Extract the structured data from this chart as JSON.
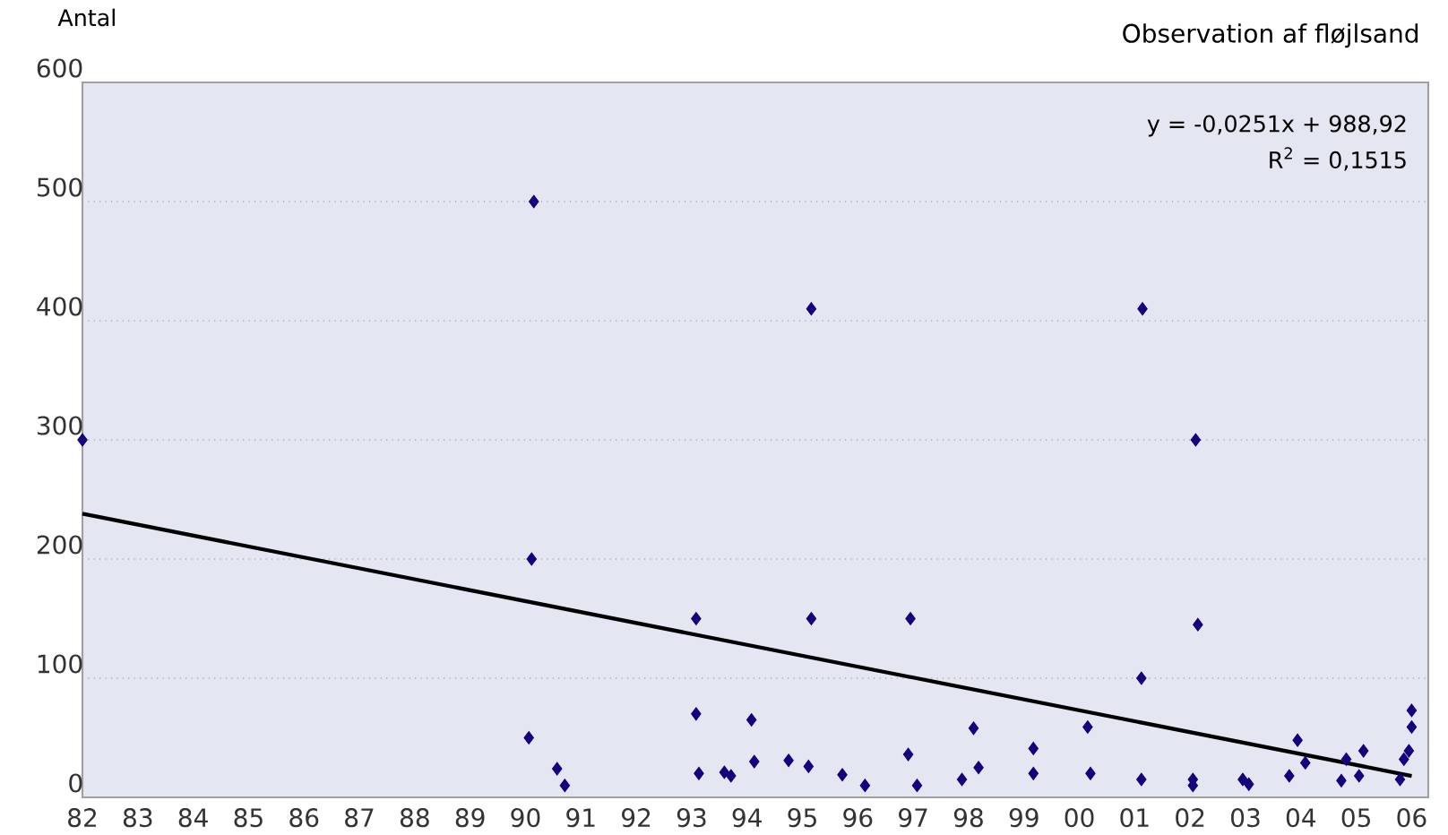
{
  "chart_data": {
    "type": "scatter",
    "title": "Observation af fløjlsand",
    "ylabel": "Antal",
    "annotations": [
      "y = -0,0251x + 988,92",
      "R$^{2}$ = 0,1515"
    ],
    "xlim": [
      1982,
      2006.3
    ],
    "xticks": [
      {
        "value": 1982,
        "label": "82"
      },
      {
        "value": 1983,
        "label": "83"
      },
      {
        "value": 1984,
        "label": "84"
      },
      {
        "value": 1985,
        "label": "85"
      },
      {
        "value": 1986,
        "label": "86"
      },
      {
        "value": 1987,
        "label": "87"
      },
      {
        "value": 1988,
        "label": "88"
      },
      {
        "value": 1989,
        "label": "89"
      },
      {
        "value": 1990,
        "label": "90"
      },
      {
        "value": 1991,
        "label": "91"
      },
      {
        "value": 1992,
        "label": "92"
      },
      {
        "value": 1993,
        "label": "93"
      },
      {
        "value": 1994,
        "label": "94"
      },
      {
        "value": 1995,
        "label": "95"
      },
      {
        "value": 1996,
        "label": "96"
      },
      {
        "value": 1997,
        "label": "97"
      },
      {
        "value": 1998,
        "label": "98"
      },
      {
        "value": 1999,
        "label": "99"
      },
      {
        "value": 2000,
        "label": "00"
      },
      {
        "value": 2001,
        "label": "01"
      },
      {
        "value": 2002,
        "label": "02"
      },
      {
        "value": 2003,
        "label": "03"
      },
      {
        "value": 2004,
        "label": "04"
      },
      {
        "value": 2005,
        "label": "05"
      },
      {
        "value": 2006,
        "label": "06"
      }
    ],
    "ylim": [
      0,
      600
    ],
    "yticks": [
      0,
      100,
      200,
      300,
      400,
      500,
      600
    ],
    "grid": "y",
    "series": [
      {
        "marker": "diamond",
        "color": "#14007c",
        "x": [
          1982.0,
          1990.15,
          1990.11,
          1990.06,
          1990.57,
          1990.71,
          1993.08,
          1993.08,
          1993.13,
          1993.59,
          1993.71,
          1994.08,
          1994.13,
          1994.75,
          1995.11,
          1995.16,
          1995.16,
          1995.72,
          1996.13,
          1996.95,
          1996.91,
          1997.07,
          1997.88,
          1998.09,
          1998.18,
          1999.17,
          1999.17,
          2000.15,
          2000.2,
          2001.14,
          2001.12,
          2001.12,
          2002.1,
          2002.14,
          2002.05,
          2002.05,
          2002.95,
          2003.06,
          2003.79,
          2003.94,
          2004.08,
          2004.73,
          2004.82,
          2005.05,
          2005.13,
          2005.79,
          2005.86,
          2005.95,
          2006.0,
          2006.0
        ],
        "values": [
          300,
          500,
          200,
          50,
          24,
          10,
          150,
          70,
          20,
          21,
          18,
          65,
          30,
          31,
          26,
          150,
          410,
          19,
          10,
          150,
          36,
          10,
          15,
          58,
          25,
          41,
          20,
          59,
          20,
          410,
          100,
          15,
          300,
          145,
          15,
          10,
          15,
          11,
          18,
          48,
          29,
          14,
          32,
          18,
          39,
          15,
          32,
          39,
          59,
          73
        ]
      },
      {
        "type": "line",
        "marker": "none",
        "color": "#000000",
        "x": [
          1982,
          2006
        ],
        "values": [
          238,
          18
        ]
      }
    ]
  }
}
